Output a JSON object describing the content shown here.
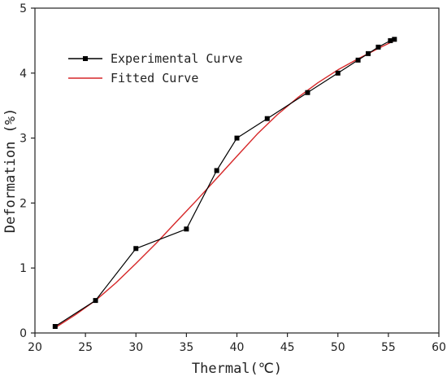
{
  "chart_data": {
    "type": "line",
    "xlabel": "Thermal(℃)",
    "ylabel": "Deformation (%)",
    "xlim": [
      20,
      60
    ],
    "ylim": [
      0,
      5
    ],
    "xticks": [
      "20",
      "25",
      "30",
      "35",
      "40",
      "45",
      "50",
      "55",
      "60"
    ],
    "yticks": [
      "0",
      "1",
      "2",
      "3",
      "4",
      "5"
    ],
    "grid": false,
    "legend_position": "top-left",
    "series": [
      {
        "name": "Experimental Curve",
        "color": "#000000",
        "marker": "square",
        "x": [
          22,
          26,
          30,
          35,
          38,
          40,
          43,
          47,
          50,
          52,
          53,
          54,
          55.2,
          55.6
        ],
        "y": [
          0.1,
          0.5,
          1.3,
          1.6,
          2.5,
          3.0,
          3.3,
          3.7,
          4.0,
          4.2,
          4.3,
          4.4,
          4.5,
          4.52
        ]
      },
      {
        "name": "Fitted Curve",
        "color": "#d62728",
        "marker": "none",
        "x": [
          22,
          24,
          26,
          28,
          30,
          32,
          34,
          36,
          38,
          40,
          42,
          44,
          46,
          48,
          50,
          52,
          54,
          55.6
        ],
        "y": [
          0.08,
          0.28,
          0.5,
          0.77,
          1.07,
          1.38,
          1.71,
          2.04,
          2.38,
          2.72,
          3.06,
          3.36,
          3.62,
          3.85,
          4.05,
          4.22,
          4.38,
          4.5
        ]
      }
    ]
  }
}
